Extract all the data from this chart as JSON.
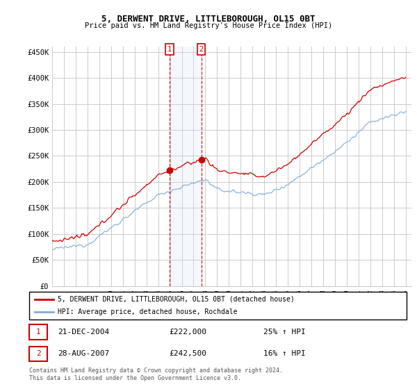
{
  "title": "5, DERWENT DRIVE, LITTLEBOROUGH, OL15 0BT",
  "subtitle": "Price paid vs. HM Land Registry's House Price Index (HPI)",
  "legend_label_red": "5, DERWENT DRIVE, LITTLEBOROUGH, OL15 0BT (detached house)",
  "legend_label_blue": "HPI: Average price, detached house, Rochdale",
  "transaction1_date": "21-DEC-2004",
  "transaction1_price": "£222,000",
  "transaction1_hpi": "25% ↑ HPI",
  "transaction2_date": "28-AUG-2007",
  "transaction2_price": "£242,500",
  "transaction2_hpi": "16% ↑ HPI",
  "footer": "Contains HM Land Registry data © Crown copyright and database right 2024.\nThis data is licensed under the Open Government Licence v3.0.",
  "ylim": [
    0,
    460000
  ],
  "yticks": [
    0,
    50000,
    100000,
    150000,
    200000,
    250000,
    300000,
    350000,
    400000,
    450000
  ],
  "color_red": "#cc0000",
  "color_blue": "#7eadd4",
  "shade_color": "#ddeeff",
  "marker1_year": 2004.97,
  "marker2_year": 2007.65,
  "background_color": "#ffffff",
  "grid_color": "#cccccc",
  "noise_seed": 12345
}
